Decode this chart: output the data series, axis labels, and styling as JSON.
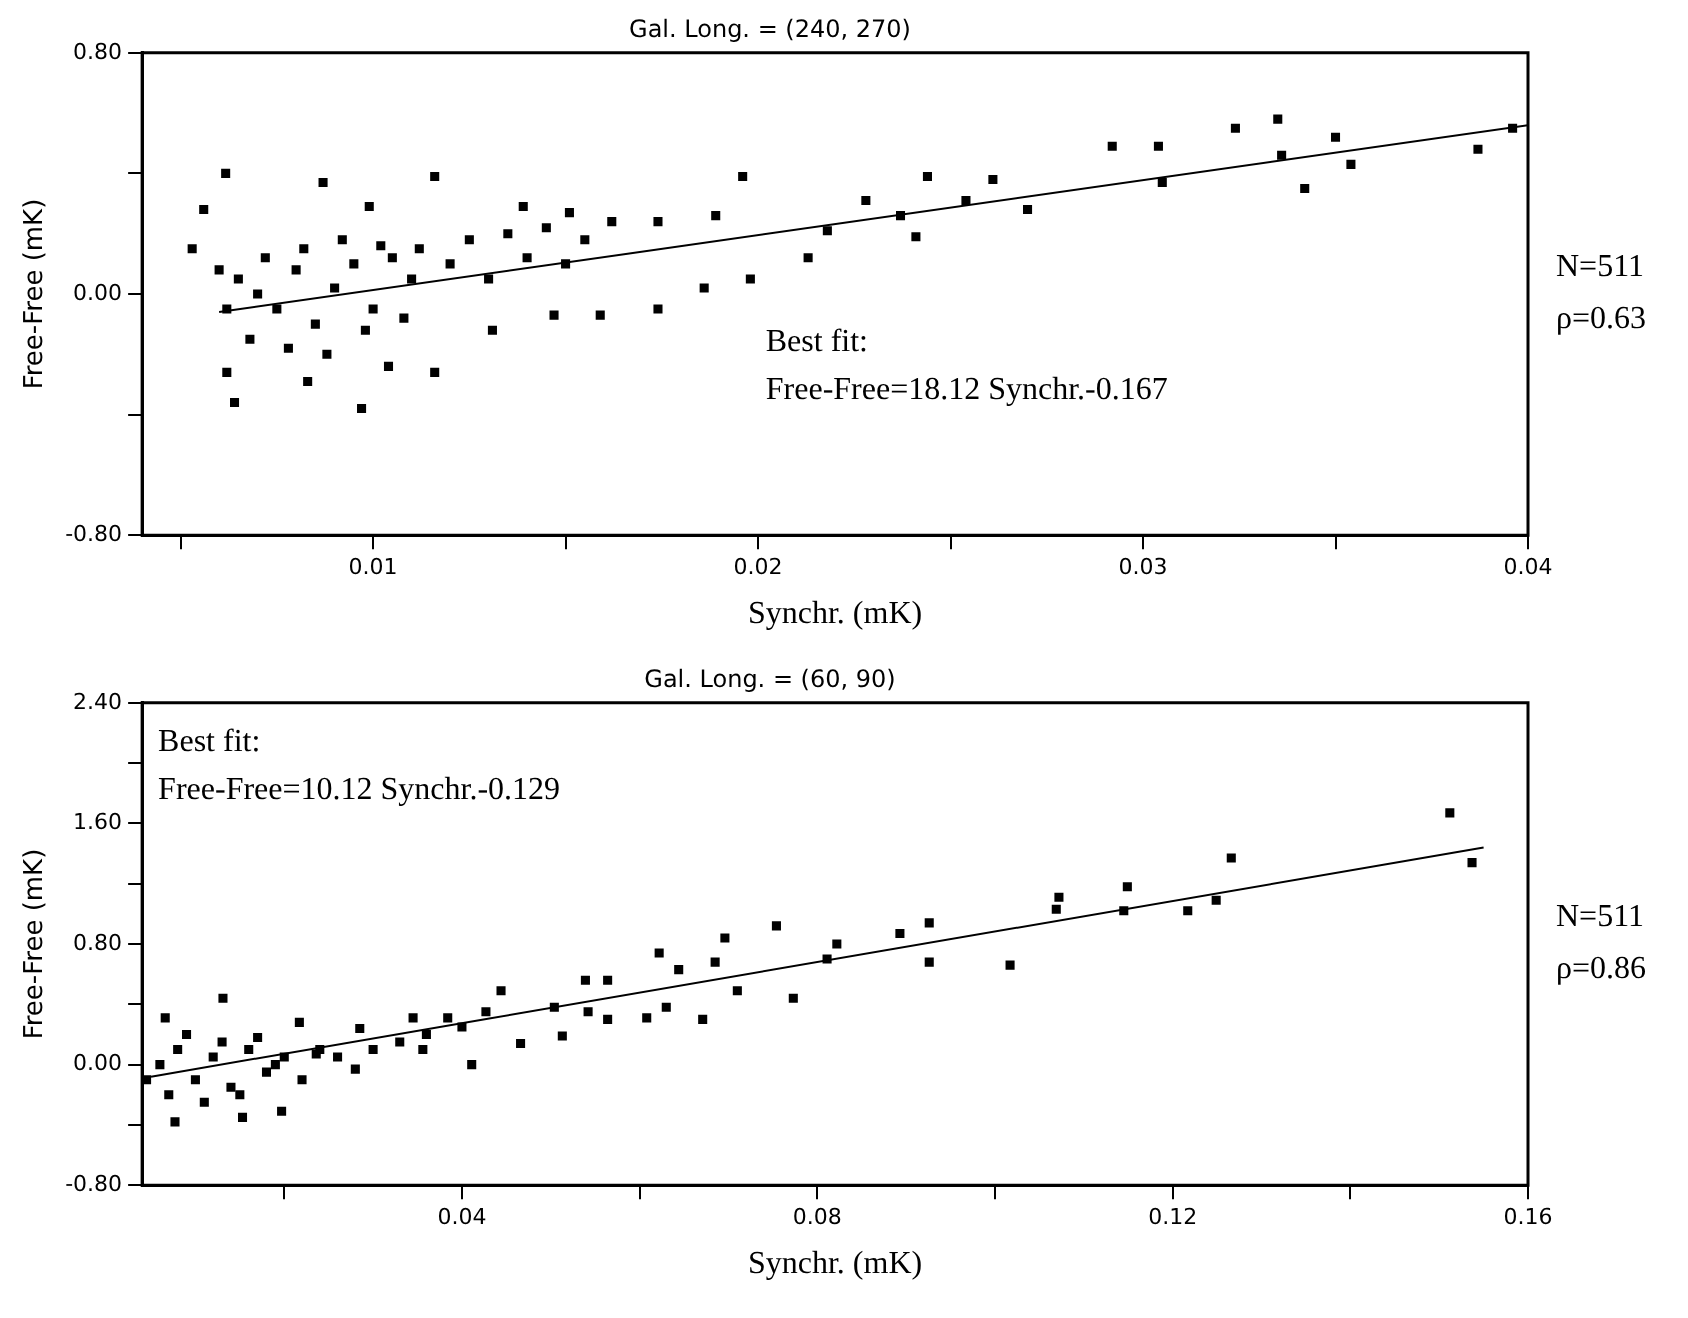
{
  "chart_data": [
    {
      "type": "scatter",
      "title": "Gal. Long. = (240, 270)",
      "xlabel": "Synchr. (mK)",
      "ylabel": "Free-Free (mK)",
      "xlim": [
        0.004,
        0.04
      ],
      "ylim": [
        -0.8,
        0.8
      ],
      "xticks": [
        {
          "value": 0.005,
          "label": null
        },
        0.01,
        {
          "value": 0.015,
          "label": null
        },
        0.02,
        {
          "value": 0.025,
          "label": null
        },
        0.03,
        {
          "value": 0.035,
          "label": null
        },
        0.04
      ],
      "yticks": [
        {
          "value": -0.8,
          "label": "-0.80"
        },
        {
          "value": -0.4,
          "label": null
        },
        {
          "value": 0,
          "label": "0.00"
        },
        {
          "value": 0.4,
          "label": null
        },
        {
          "value": 0.8,
          "label": "0.80"
        }
      ],
      "grid": false,
      "legend": false,
      "annotations": [
        "Best fit:\nFree-Free=18.12 Synchr.-0.167",
        "N=511",
        "ρ=0.63"
      ],
      "series": [
        {
          "type": "scatter",
          "marker": "square",
          "color": "#000000",
          "x": [
            0.00617,
            0.0056,
            0.0053,
            0.0087,
            0.0099,
            0.0116,
            0.0139,
            0.0151,
            0.0162,
            0.0174,
            0.0189,
            0.0196,
            0.0198,
            0.0186,
            0.0174,
            0.0159,
            0.0147,
            0.0131,
            0.0116,
            0.0097,
            0.0064,
            0.0062,
            0.0083,
            0.0104,
            0.0213,
            0.0218,
            0.0228,
            0.0237,
            0.0241,
            0.0244,
            0.0254,
            0.0261,
            0.027,
            0.0292,
            0.0304,
            0.0305,
            0.0324,
            0.0335,
            0.0336,
            0.0342,
            0.035,
            0.0354,
            0.0387,
            0.0396,
            0.0065,
            0.007,
            0.0075,
            0.008,
            0.0085,
            0.009,
            0.0095,
            0.01,
            0.0105,
            0.011,
            0.0068,
            0.0072,
            0.0078,
            0.0082,
            0.0088,
            0.0092,
            0.0098,
            0.0102,
            0.0108,
            0.0112,
            0.012,
            0.0125,
            0.013,
            0.0135,
            0.014,
            0.0145,
            0.015,
            0.0155,
            0.0062,
            0.006
          ],
          "values": [
            0.4,
            0.28,
            0.15,
            0.37,
            0.29,
            0.39,
            0.29,
            0.27,
            0.24,
            0.24,
            0.26,
            0.39,
            0.05,
            0.02,
            -0.05,
            -0.07,
            -0.07,
            -0.12,
            -0.26,
            -0.38,
            -0.36,
            -0.26,
            -0.29,
            -0.24,
            0.12,
            0.21,
            0.31,
            0.26,
            0.19,
            0.39,
            0.31,
            0.38,
            0.28,
            0.49,
            0.49,
            0.37,
            0.55,
            0.58,
            0.46,
            0.35,
            0.52,
            0.43,
            0.48,
            0.55,
            0.05,
            0,
            -0.05,
            0.08,
            -0.1,
            0.02,
            0.1,
            -0.05,
            0.12,
            0.05,
            -0.15,
            0.12,
            -0.18,
            0.15,
            -0.2,
            0.18,
            -0.12,
            0.16,
            -0.08,
            0.15,
            0.1,
            0.18,
            0.05,
            0.2,
            0.12,
            0.22,
            0.1,
            0.18,
            -0.05,
            0.08
          ]
        },
        {
          "type": "line",
          "marker": "none",
          "color": "#000000",
          "x": [
            0.006,
            0.04
          ],
          "values": [
            -0.06,
            0.56
          ]
        }
      ]
    },
    {
      "type": "scatter",
      "title": "Gal. Long. = (60, 90)",
      "xlabel": "Synchr. (mK)",
      "ylabel": "Free-Free (mK)",
      "xlim": [
        0.004,
        0.16
      ],
      "ylim": [
        -0.8,
        2.4
      ],
      "xticks": [
        {
          "value": 0.02,
          "label": null
        },
        0.04,
        {
          "value": 0.06,
          "label": null
        },
        0.08,
        {
          "value": 0.1,
          "label": null
        },
        0.12,
        {
          "value": 0.14,
          "label": null
        },
        0.16
      ],
      "yticks": [
        {
          "value": -0.8,
          "label": "-0.80"
        },
        {
          "value": -0.4,
          "label": null
        },
        {
          "value": 0,
          "label": "0.00"
        },
        {
          "value": 0.4,
          "label": null
        },
        {
          "value": 0.8,
          "label": "0.80"
        },
        {
          "value": 1.2,
          "label": null
        },
        {
          "value": 1.6,
          "label": "1.60"
        },
        {
          "value": 2.0,
          "label": null
        },
        {
          "value": 2.4,
          "label": "2.40"
        }
      ],
      "grid": false,
      "legend": false,
      "annotations": [
        "Best fit:\nFree-Free=10.12 Synchr.-0.129",
        "N=511",
        "ρ=0.86"
      ],
      "series": [
        {
          "type": "scatter",
          "marker": "square",
          "color": "#000000",
          "x": [
            0.1512,
            0.1537,
            0.1266,
            0.1249,
            0.1217,
            0.1149,
            0.1145,
            0.1072,
            0.1069,
            0.1017,
            0.0926,
            0.0926,
            0.0893,
            0.0822,
            0.0811,
            0.0773,
            0.0754,
            0.071,
            0.0696,
            0.0685,
            0.0671,
            0.0644,
            0.063,
            0.0622,
            0.0608,
            0.0564,
            0.0564,
            0.0539,
            0.0542,
            0.0513,
            0.0504,
            0.0466,
            0.0444,
            0.0427,
            0.0411,
            0.0384,
            0.0356,
            0.0345,
            0.0285,
            0.028,
            0.0236,
            0.0217,
            0.0197,
            0.0153,
            0.0131,
            0.0077,
            0.0066,
            0.0045,
            0.006,
            0.008,
            0.01,
            0.012,
            0.014,
            0.016,
            0.018,
            0.02,
            0.022,
            0.024,
            0.007,
            0.009,
            0.011,
            0.013,
            0.015,
            0.017,
            0.019,
            0.026,
            0.03,
            0.033,
            0.036,
            0.04
          ],
          "values": [
            1.67,
            1.34,
            1.37,
            1.09,
            1.02,
            1.18,
            1.02,
            1.11,
            1.03,
            0.66,
            0.94,
            0.68,
            0.87,
            0.8,
            0.7,
            0.44,
            0.92,
            0.49,
            0.84,
            0.68,
            0.3,
            0.63,
            0.38,
            0.74,
            0.31,
            0.56,
            0.3,
            0.56,
            0.35,
            0.19,
            0.38,
            0.14,
            0.49,
            0.35,
            0,
            0.31,
            0.1,
            0.31,
            0.24,
            -0.03,
            0.07,
            0.28,
            -0.31,
            -0.35,
            0.44,
            -0.38,
            0.31,
            -0.1,
            0,
            0.1,
            -0.1,
            0.05,
            -0.15,
            0.1,
            -0.05,
            0.05,
            -0.1,
            0.1,
            -0.2,
            0.2,
            -0.25,
            0.15,
            -0.2,
            0.18,
            0,
            0.05,
            0.1,
            0.15,
            0.2,
            0.25
          ]
        },
        {
          "type": "line",
          "marker": "none",
          "color": "#000000",
          "x": [
            0.005,
            0.155
          ],
          "values": [
            -0.08,
            1.44
          ]
        }
      ]
    }
  ]
}
